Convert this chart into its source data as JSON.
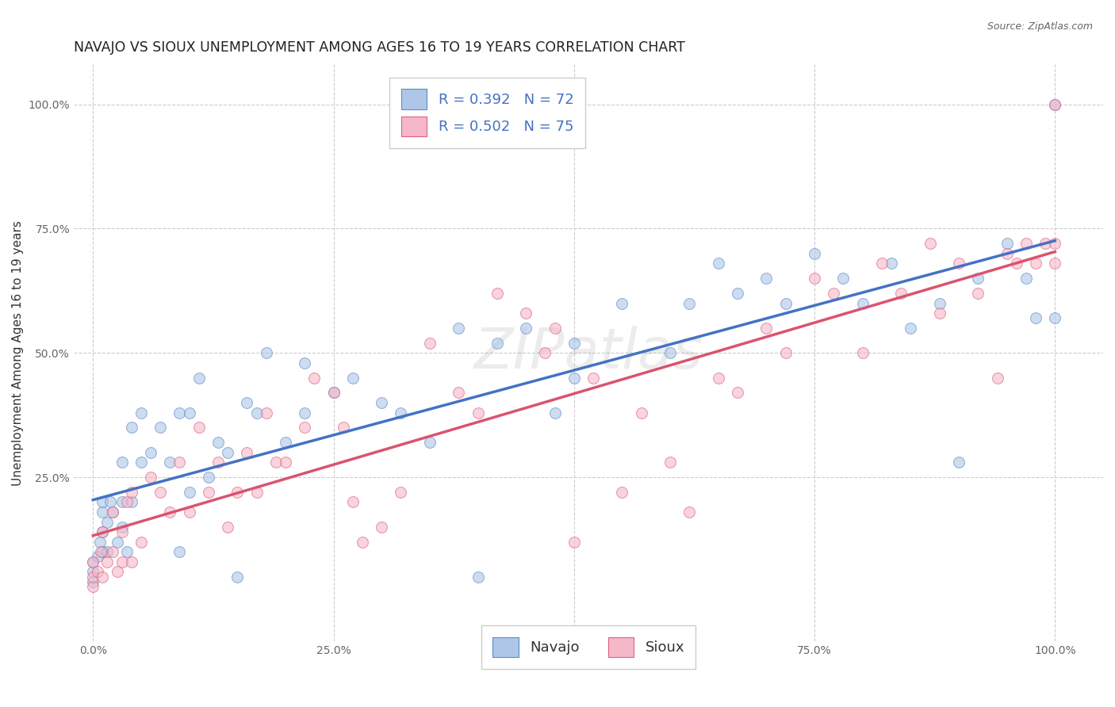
{
  "title": "NAVAJO VS SIOUX UNEMPLOYMENT AMONG AGES 16 TO 19 YEARS CORRELATION CHART",
  "source": "Source: ZipAtlas.com",
  "ylabel": "Unemployment Among Ages 16 to 19 years",
  "navajo_R": 0.392,
  "navajo_N": 72,
  "sioux_R": 0.502,
  "sioux_N": 75,
  "navajo_color": "#aec6e8",
  "sioux_color": "#f4b8c8",
  "navajo_edge_color": "#5b8ec4",
  "sioux_edge_color": "#e0607a",
  "navajo_line_color": "#4472c4",
  "sioux_line_color": "#d9546e",
  "background_color": "#ffffff",
  "grid_color": "#cccccc",
  "navajo_x": [
    0.0,
    0.0,
    0.0,
    0.005,
    0.007,
    0.01,
    0.01,
    0.01,
    0.01,
    0.015,
    0.015,
    0.018,
    0.02,
    0.025,
    0.03,
    0.03,
    0.03,
    0.035,
    0.04,
    0.04,
    0.05,
    0.05,
    0.06,
    0.07,
    0.08,
    0.09,
    0.09,
    0.1,
    0.1,
    0.11,
    0.12,
    0.13,
    0.14,
    0.15,
    0.16,
    0.17,
    0.18,
    0.2,
    0.22,
    0.22,
    0.25,
    0.27,
    0.3,
    0.32,
    0.35,
    0.38,
    0.4,
    0.42,
    0.45,
    0.48,
    0.5,
    0.5,
    0.55,
    0.6,
    0.62,
    0.65,
    0.67,
    0.7,
    0.72,
    0.75,
    0.78,
    0.8,
    0.83,
    0.85,
    0.88,
    0.9,
    0.92,
    0.95,
    0.97,
    0.98,
    1.0,
    1.0
  ],
  "navajo_y": [
    0.04,
    0.06,
    0.08,
    0.09,
    0.12,
    0.1,
    0.14,
    0.18,
    0.2,
    0.1,
    0.16,
    0.2,
    0.18,
    0.12,
    0.15,
    0.2,
    0.28,
    0.1,
    0.2,
    0.35,
    0.28,
    0.38,
    0.3,
    0.35,
    0.28,
    0.38,
    0.1,
    0.22,
    0.38,
    0.45,
    0.25,
    0.32,
    0.3,
    0.05,
    0.4,
    0.38,
    0.5,
    0.32,
    0.38,
    0.48,
    0.42,
    0.45,
    0.4,
    0.38,
    0.32,
    0.55,
    0.05,
    0.52,
    0.55,
    0.38,
    0.52,
    0.45,
    0.6,
    0.5,
    0.6,
    0.68,
    0.62,
    0.65,
    0.6,
    0.7,
    0.65,
    0.6,
    0.68,
    0.55,
    0.6,
    0.28,
    0.65,
    0.72,
    0.65,
    0.57,
    0.57,
    1.0
  ],
  "sioux_x": [
    0.0,
    0.0,
    0.0,
    0.005,
    0.008,
    0.01,
    0.01,
    0.015,
    0.02,
    0.02,
    0.025,
    0.03,
    0.03,
    0.035,
    0.04,
    0.04,
    0.05,
    0.06,
    0.07,
    0.08,
    0.09,
    0.1,
    0.11,
    0.12,
    0.13,
    0.14,
    0.15,
    0.16,
    0.17,
    0.18,
    0.19,
    0.2,
    0.22,
    0.23,
    0.25,
    0.26,
    0.27,
    0.28,
    0.3,
    0.32,
    0.35,
    0.38,
    0.4,
    0.42,
    0.45,
    0.47,
    0.48,
    0.5,
    0.52,
    0.55,
    0.57,
    0.6,
    0.62,
    0.65,
    0.67,
    0.7,
    0.72,
    0.75,
    0.77,
    0.8,
    0.82,
    0.84,
    0.87,
    0.88,
    0.9,
    0.92,
    0.94,
    0.95,
    0.96,
    0.97,
    0.98,
    0.99,
    1.0,
    1.0,
    1.0
  ],
  "sioux_y": [
    0.03,
    0.05,
    0.08,
    0.06,
    0.1,
    0.05,
    0.14,
    0.08,
    0.1,
    0.18,
    0.06,
    0.08,
    0.14,
    0.2,
    0.08,
    0.22,
    0.12,
    0.25,
    0.22,
    0.18,
    0.28,
    0.18,
    0.35,
    0.22,
    0.28,
    0.15,
    0.22,
    0.3,
    0.22,
    0.38,
    0.28,
    0.28,
    0.35,
    0.45,
    0.42,
    0.35,
    0.2,
    0.12,
    0.15,
    0.22,
    0.52,
    0.42,
    0.38,
    0.62,
    0.58,
    0.5,
    0.55,
    0.12,
    0.45,
    0.22,
    0.38,
    0.28,
    0.18,
    0.45,
    0.42,
    0.55,
    0.5,
    0.65,
    0.62,
    0.5,
    0.68,
    0.62,
    0.72,
    0.58,
    0.68,
    0.62,
    0.45,
    0.7,
    0.68,
    0.72,
    0.68,
    0.72,
    0.68,
    0.72,
    1.0
  ],
  "xlim": [
    -0.02,
    1.05
  ],
  "ylim": [
    -0.08,
    1.08
  ],
  "xticks": [
    0.0,
    0.25,
    0.5,
    0.75,
    1.0
  ],
  "xtick_labels": [
    "0.0%",
    "25.0%",
    "50.0%",
    "75.0%",
    "100.0%"
  ],
  "yticks": [
    0.25,
    0.5,
    0.75,
    1.0
  ],
  "ytick_labels": [
    "25.0%",
    "50.0%",
    "75.0%",
    "100.0%"
  ],
  "legend_label_navajo": "Navajo",
  "legend_label_sioux": "Sioux",
  "marker_size": 100,
  "marker_alpha": 0.6,
  "title_fontsize": 12.5,
  "axis_label_fontsize": 11,
  "tick_fontsize": 10,
  "legend_fontsize": 13
}
